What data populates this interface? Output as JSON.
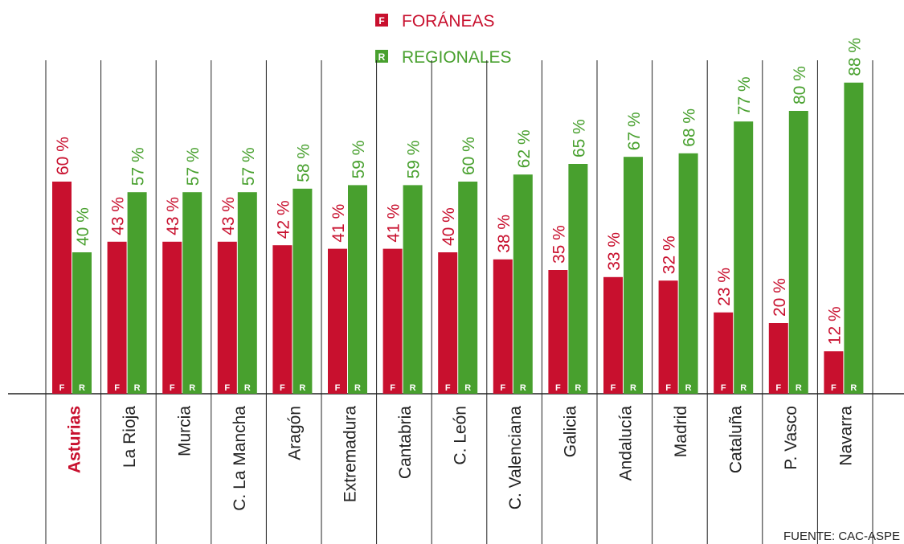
{
  "chart_data": {
    "type": "bar",
    "categories": [
      "Asturias",
      "La Rioja",
      "Murcia",
      "C. La Mancha",
      "Aragón",
      "Extremadura",
      "Cantabria",
      "C. León",
      "C. Valenciana",
      "Galicia",
      "Andalucía",
      "Madrid",
      "Cataluña",
      "P. Vasco",
      "Navarra"
    ],
    "series": [
      {
        "name": "FORÁNEAS",
        "marker": "F",
        "color": "#c8102e",
        "values": [
          60,
          43,
          43,
          43,
          42,
          41,
          41,
          40,
          38,
          35,
          33,
          32,
          23,
          20,
          12
        ],
        "value_labels": [
          "60 %",
          "43 %",
          "43 %",
          "43 %",
          "42 %",
          "41 %",
          "41 %",
          "40 %",
          "38 %",
          "35 %",
          "33 %",
          "32 %",
          "23 %",
          "20 %",
          "12 %"
        ]
      },
      {
        "name": "REGIONALES",
        "marker": "R",
        "color": "#48a02e",
        "values": [
          40,
          57,
          57,
          57,
          58,
          59,
          59,
          60,
          62,
          65,
          67,
          68,
          77,
          80,
          88
        ],
        "value_labels": [
          "40 %",
          "57 %",
          "57 %",
          "57 %",
          "58 %",
          "59 %",
          "59 %",
          "60 %",
          "62 %",
          "65 %",
          "67 %",
          "68 %",
          "77 %",
          "80 %",
          "88 %"
        ]
      }
    ],
    "ylim": [
      0,
      100
    ],
    "highlight_index": 0,
    "source": "FUENTE: CAC-ASPE"
  }
}
